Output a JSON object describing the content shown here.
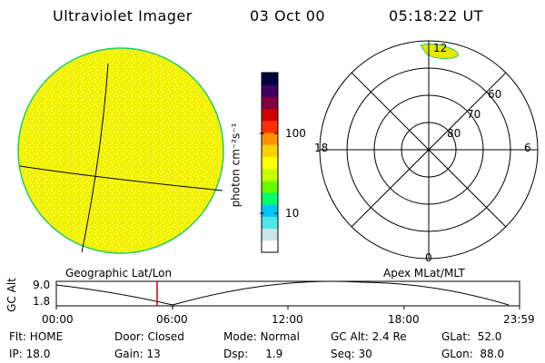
{
  "header": {
    "title": "Ultraviolet Imager",
    "date": "03 Oct 00",
    "time": "05:18:22 UT"
  },
  "colorbar": {
    "axis_label": "photon cm⁻²s⁻¹",
    "tick_100": "100",
    "tick_10": "10"
  },
  "polar_plot": {
    "mlt_labels": {
      "top": "12",
      "left": "18",
      "right": "6",
      "bottom": "0"
    },
    "lat_labels": [
      "60",
      "70",
      "80"
    ]
  },
  "projection_labels": {
    "left": "Geographic Lat/Lon",
    "right": "Apex MLat/MLT"
  },
  "altitude_plot": {
    "axis_label": "GC Alt",
    "y_top": "9.0",
    "y_bottom": "1.8",
    "x_ticks": [
      "00:00",
      "06:00",
      "12:00",
      "18:00",
      "23:59"
    ]
  },
  "info": {
    "flt": "Flt: HOME",
    "ip": "IP: 18.0",
    "door": "Door: Closed",
    "gain": "Gain: 13",
    "mode": "Mode: Normal",
    "dsp": "Dsp:     1.9",
    "gcalt": "GC Alt: 2.4 Re",
    "seq": "Seq: 30",
    "glat": "GLat:  52.0",
    "glon": "GLon:  88.0"
  },
  "colors": {
    "earth_fill": "#f2f200",
    "earth_rim": "#22cc66",
    "time_marker": "#cc0000"
  },
  "colorbar_colors": [
    "#ffffff",
    "#c8e6e6",
    "#4ce6e6",
    "#00c8ff",
    "#00ff66",
    "#66ff00",
    "#c8ff00",
    "#ffff00",
    "#ffd000",
    "#ff9000",
    "#ff3000",
    "#d00000",
    "#800040",
    "#400060",
    "#000040"
  ]
}
